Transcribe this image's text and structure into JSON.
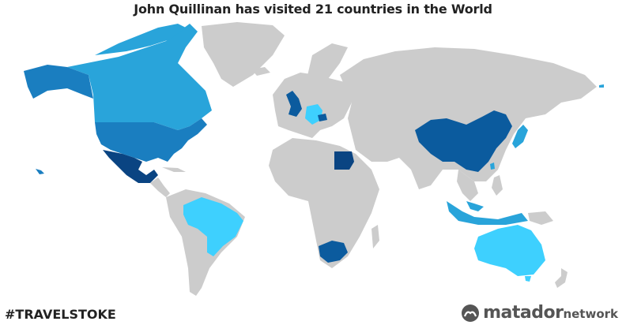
{
  "title": "John Quillinan has visited 21 countries in the World",
  "hashtag": "#TRAVELSTOKE",
  "brand": {
    "name_main": "matador",
    "name_suffix": "network"
  },
  "colors": {
    "unvisited": "#cccccc",
    "shade_light": "#3ed0fe",
    "shade_mid": "#29a4da",
    "shade_dark": "#1a7ec0",
    "shade_deep": "#0b5b9e",
    "shade_darkest": "#0a4482"
  },
  "visited_countries": [
    {
      "name": "Canada",
      "shade": "shade_mid"
    },
    {
      "name": "Alaska (United States)",
      "shade": "shade_dark"
    },
    {
      "name": "United States",
      "shade": "shade_dark"
    },
    {
      "name": "Mexico",
      "shade": "shade_darkest"
    },
    {
      "name": "Brazil",
      "shade": "shade_light"
    },
    {
      "name": "United Kingdom",
      "shade": "shade_deep"
    },
    {
      "name": "Germany",
      "shade": "shade_light"
    },
    {
      "name": "Czech Republic",
      "shade": "shade_deep"
    },
    {
      "name": "Egypt",
      "shade": "shade_darkest"
    },
    {
      "name": "South Africa",
      "shade": "shade_deep"
    },
    {
      "name": "China",
      "shade": "shade_deep"
    },
    {
      "name": "Taiwan",
      "shade": "shade_mid"
    },
    {
      "name": "Japan",
      "shade": "shade_mid"
    },
    {
      "name": "Malaysia",
      "shade": "shade_mid"
    },
    {
      "name": "Indonesia",
      "shade": "shade_mid"
    },
    {
      "name": "Australia",
      "shade": "shade_light"
    }
  ]
}
